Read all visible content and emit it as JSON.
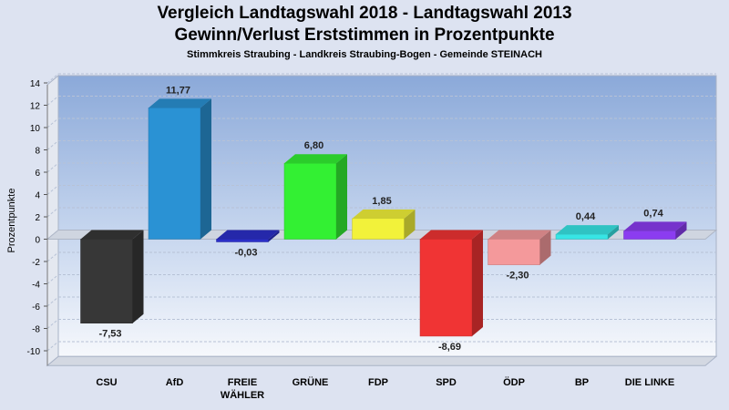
{
  "header": {
    "title": "Vergleich Landtagswahl 2018 - Landtagswahl 2013",
    "subtitle": "Gewinn/Verlust Erststimmen in Prozentpunkte",
    "caption": "Stimmkreis Straubing - Landkreis Straubing-Bogen - Gemeinde STEINACH"
  },
  "chart_data": {
    "type": "bar",
    "title": "Vergleich Landtagswahl 2018 - Landtagswahl 2013",
    "subtitle": "Gewinn/Verlust Erststimmen in Prozentpunkte",
    "ylabel": "Prozentpunkte",
    "xlabel": "",
    "ylim": [
      -11,
      14
    ],
    "yticks": [
      14,
      12,
      10,
      8,
      6,
      4,
      2,
      0,
      -2,
      -4,
      -6,
      -8,
      -10
    ],
    "grid": true,
    "categories": [
      "CSU",
      "AfD",
      "FREIE WÄHLER",
      "GRÜNE",
      "FDP",
      "SPD",
      "ÖDP",
      "BP",
      "DIE LINKE"
    ],
    "category_lines": [
      [
        "CSU"
      ],
      [
        "AfD"
      ],
      [
        "FREIE",
        "WÄHLER"
      ],
      [
        "GRÜNE"
      ],
      [
        "FDP"
      ],
      [
        "SPD"
      ],
      [
        "ÖDP"
      ],
      [
        "BP"
      ],
      [
        "DIE LINKE"
      ]
    ],
    "values": [
      -7.53,
      11.77,
      -0.03,
      6.8,
      1.85,
      -8.69,
      -2.3,
      0.44,
      0.74
    ],
    "value_labels": [
      "-7,53",
      "11,77",
      "-0,03",
      "6,80",
      "1,85",
      "-8,69",
      "-2,30",
      "0,44",
      "0,74"
    ],
    "colors": [
      "#373737",
      "#2a92d4",
      "#2b2fc8",
      "#33f033",
      "#f2f23a",
      "#f03434",
      "#f4999b",
      "#37e5e5",
      "#8b3cf0"
    ]
  }
}
